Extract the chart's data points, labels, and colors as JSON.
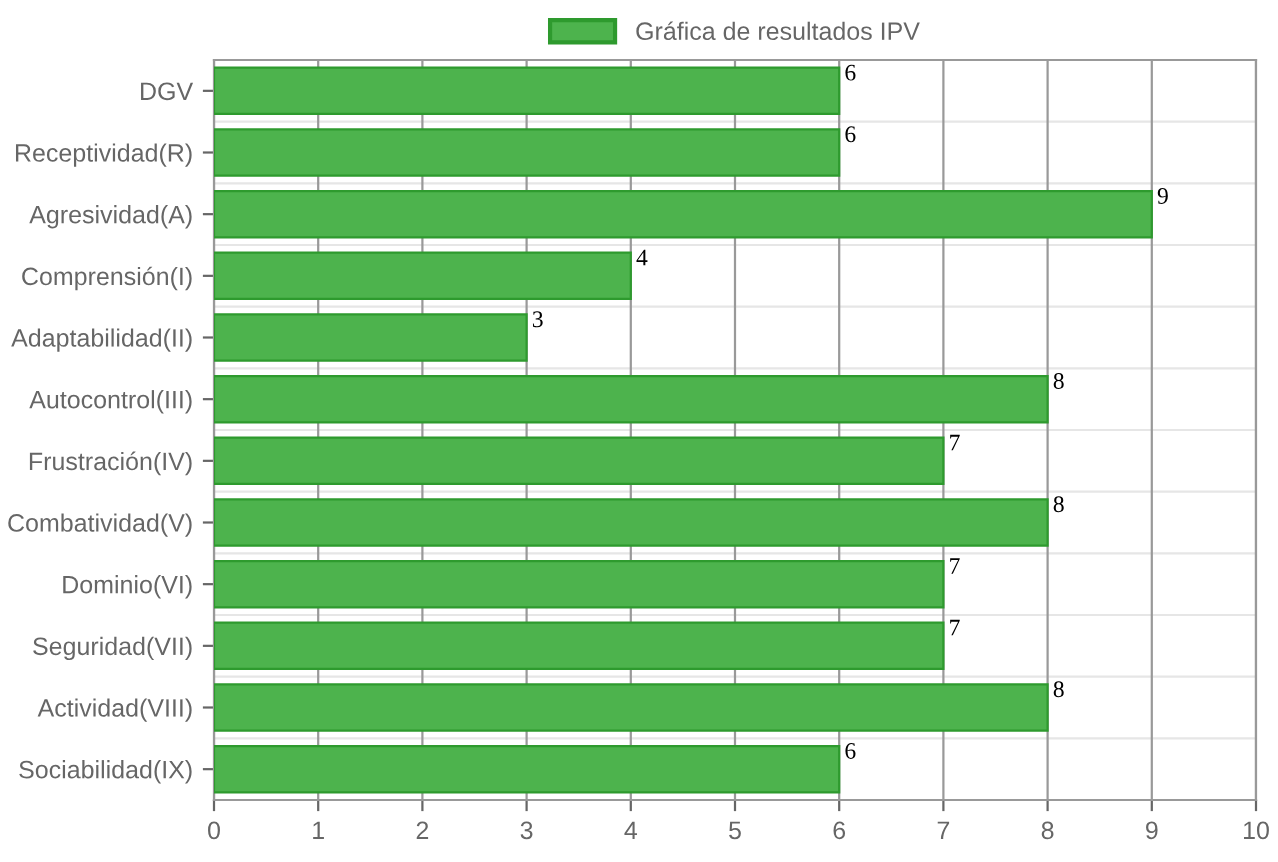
{
  "chart_data": {
    "type": "bar",
    "orientation": "horizontal",
    "categories": [
      "DGV",
      "Receptividad(R)",
      "Agresividad(A)",
      "Comprensión(I)",
      "Adaptabilidad(II)",
      "Autocontrol(III)",
      "Frustración(IV)",
      "Combatividad(V)",
      "Dominio(VI)",
      "Seguridad(VII)",
      "Actividad(VIII)",
      "Sociabilidad(IX)"
    ],
    "series": [
      {
        "name": "Gráfica de resultados IPV",
        "color": "#4db34d",
        "values": [
          6,
          6,
          9,
          4,
          3,
          8,
          7,
          8,
          7,
          7,
          8,
          6
        ]
      }
    ],
    "xlim": [
      0,
      10
    ],
    "xticks": [
      0,
      1,
      2,
      3,
      4,
      5,
      6,
      7,
      8,
      9,
      10
    ],
    "grid": true,
    "legend": "top",
    "data_labels": true
  }
}
